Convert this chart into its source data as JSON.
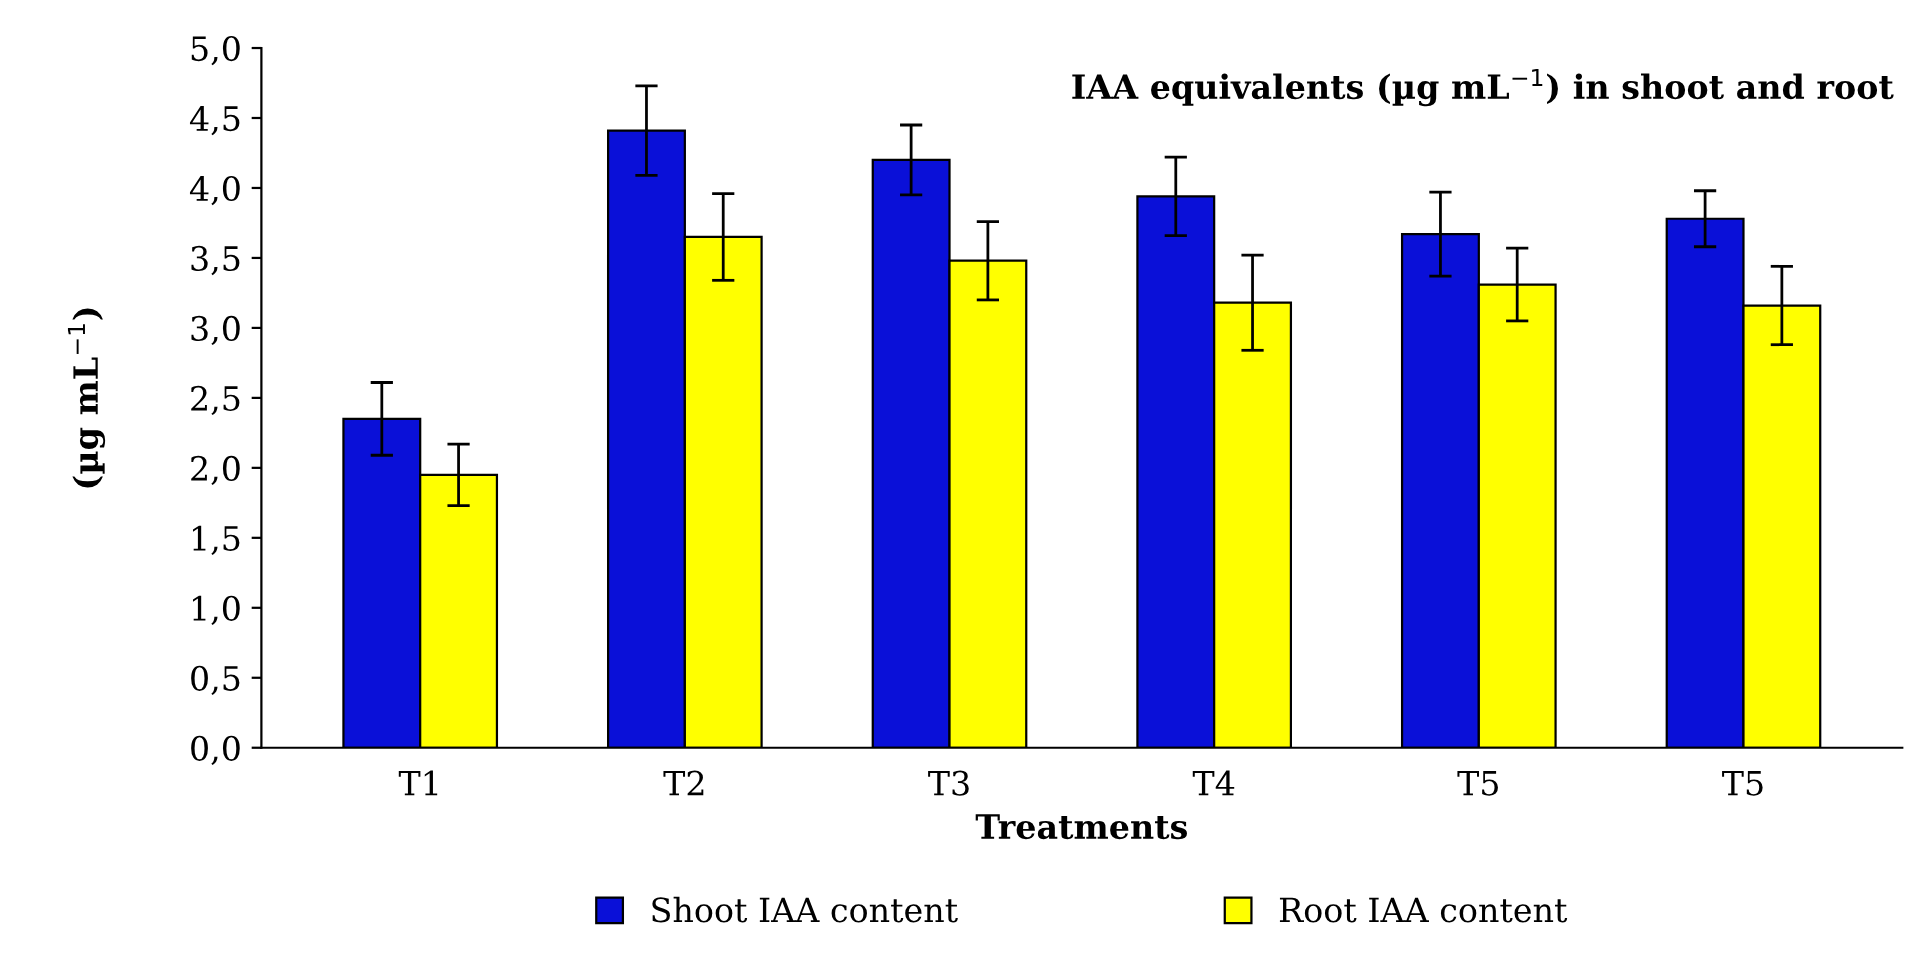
{
  "chart_data": {
    "type": "bar",
    "xlabel": "Treatments",
    "ylabel": "(µg mL$^{−1}$)",
    "annotations": [
      "IAA equivalents (µg mL$^{−1}$) in shoot and root"
    ],
    "categories": [
      "T1",
      "T2",
      "T3",
      "T4",
      "T5",
      "T5"
    ],
    "series": [
      {
        "name": "Shoot IAA content",
        "color": "#0a10d8",
        "values": [
          2.35,
          4.41,
          4.2,
          3.94,
          3.67,
          3.78
        ],
        "errors": [
          0.26,
          0.32,
          0.25,
          0.28,
          0.3,
          0.2
        ]
      },
      {
        "name": "Root IAA content",
        "color": "#ffff00",
        "values": [
          1.95,
          3.65,
          3.48,
          3.18,
          3.31,
          3.16
        ],
        "errors": [
          0.22,
          0.31,
          0.28,
          0.34,
          0.26,
          0.28
        ]
      }
    ],
    "ylim": [
      0,
      5
    ],
    "yticks": [
      {
        "value": 0,
        "label": "0,0"
      },
      {
        "value": 0.5,
        "label": "0,5"
      },
      {
        "value": 1,
        "label": "1,0"
      },
      {
        "value": 1.5,
        "label": "1,5"
      },
      {
        "value": 2,
        "label": "2,0"
      },
      {
        "value": 2.5,
        "label": "2,5"
      },
      {
        "value": 3,
        "label": "3,0"
      },
      {
        "value": 3.5,
        "label": "3,5"
      },
      {
        "value": 4,
        "label": "4,0"
      },
      {
        "value": 4.5,
        "label": "4,5"
      },
      {
        "value": 5,
        "label": "5,0"
      }
    ],
    "grid": false,
    "legend": "bottom"
  }
}
